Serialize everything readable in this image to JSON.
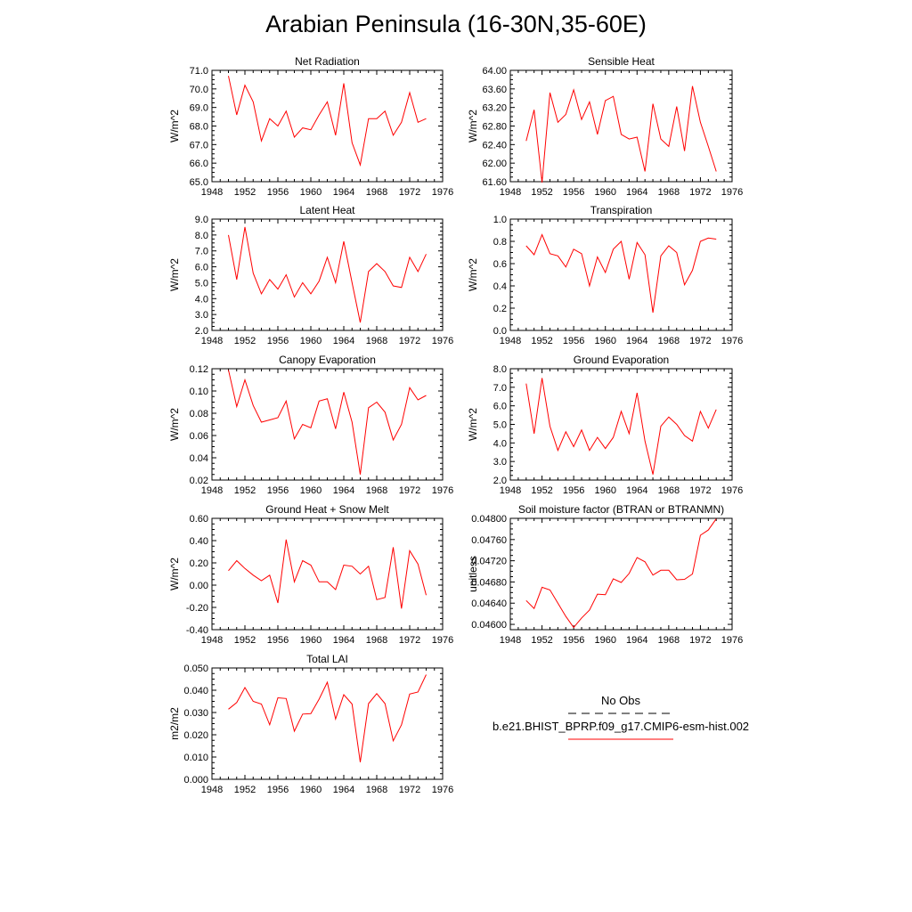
{
  "page_title": "Arabian Peninsula (16-30N,35-60E)",
  "line_color": "#ff0000",
  "obs_color": "#000000",
  "legend": {
    "obs_label": "No Obs",
    "model_label": "b.e21.BHIST_BPRP.f09_g17.CMIP6-esm-hist.002"
  },
  "chart_data": [
    {
      "type": "line",
      "title": "Net Radiation",
      "ylabel": "W/m^2",
      "xlim": [
        1948,
        1976
      ],
      "ylim": [
        65.0,
        71.0
      ],
      "xticks": [
        1948,
        1952,
        1956,
        1960,
        1964,
        1968,
        1972,
        1976
      ],
      "yticks": [
        "65.0",
        "66.0",
        "67.0",
        "68.0",
        "69.0",
        "70.0",
        "71.0"
      ],
      "x": [
        1950,
        1951,
        1952,
        1953,
        1954,
        1955,
        1956,
        1957,
        1958,
        1959,
        1960,
        1961,
        1962,
        1963,
        1964,
        1965,
        1966,
        1967,
        1968,
        1969,
        1970,
        1971,
        1972,
        1973,
        1974
      ],
      "values": [
        70.7,
        68.6,
        70.2,
        69.3,
        67.2,
        68.4,
        68.0,
        68.8,
        67.4,
        67.9,
        67.8,
        68.6,
        69.3,
        67.5,
        70.3,
        67.1,
        65.9,
        68.4,
        68.4,
        68.8,
        67.5,
        68.2,
        69.8,
        68.2,
        68.4
      ]
    },
    {
      "type": "line",
      "title": "Sensible Heat",
      "ylabel": "W/m^2",
      "xlim": [
        1948,
        1976
      ],
      "ylim": [
        61.6,
        64.0
      ],
      "xticks": [
        1948,
        1952,
        1956,
        1960,
        1964,
        1968,
        1972,
        1976
      ],
      "yticks": [
        "61.60",
        "62.00",
        "62.40",
        "62.80",
        "63.20",
        "63.60",
        "64.00"
      ],
      "x": [
        1950,
        1951,
        1952,
        1953,
        1954,
        1955,
        1956,
        1957,
        1958,
        1959,
        1960,
        1961,
        1962,
        1963,
        1964,
        1965,
        1966,
        1967,
        1968,
        1969,
        1970,
        1971,
        1972,
        1973,
        1974
      ],
      "values": [
        62.48,
        63.15,
        61.58,
        63.52,
        62.88,
        63.05,
        63.58,
        62.94,
        63.32,
        62.62,
        63.35,
        63.44,
        62.62,
        62.52,
        62.56,
        61.82,
        63.28,
        62.52,
        62.36,
        63.22,
        62.26,
        63.66,
        62.88,
        62.36,
        61.82
      ]
    },
    {
      "type": "line",
      "title": "Latent Heat",
      "ylabel": "W/m^2",
      "xlim": [
        1948,
        1976
      ],
      "ylim": [
        2.0,
        9.0
      ],
      "xticks": [
        1948,
        1952,
        1956,
        1960,
        1964,
        1968,
        1972,
        1976
      ],
      "yticks": [
        "2.0",
        "3.0",
        "4.0",
        "5.0",
        "6.0",
        "7.0",
        "8.0",
        "9.0"
      ],
      "x": [
        1950,
        1951,
        1952,
        1953,
        1954,
        1955,
        1956,
        1957,
        1958,
        1959,
        1960,
        1961,
        1962,
        1963,
        1964,
        1965,
        1966,
        1967,
        1968,
        1969,
        1970,
        1971,
        1972,
        1973,
        1974
      ],
      "values": [
        8.0,
        5.2,
        8.5,
        5.6,
        4.3,
        5.2,
        4.6,
        5.5,
        4.1,
        5.0,
        4.3,
        5.1,
        6.6,
        5.0,
        7.6,
        5.0,
        2.5,
        5.7,
        6.2,
        5.7,
        4.8,
        4.7,
        6.6,
        5.7,
        6.8
      ]
    },
    {
      "type": "line",
      "title": "Transpiration",
      "ylabel": "W/m^2",
      "xlim": [
        1948,
        1976
      ],
      "ylim": [
        0.0,
        1.0
      ],
      "xticks": [
        1948,
        1952,
        1956,
        1960,
        1964,
        1968,
        1972,
        1976
      ],
      "yticks": [
        "0.0",
        "0.2",
        "0.4",
        "0.6",
        "0.8",
        "1.0"
      ],
      "x": [
        1950,
        1951,
        1952,
        1953,
        1954,
        1955,
        1956,
        1957,
        1958,
        1959,
        1960,
        1961,
        1962,
        1963,
        1964,
        1965,
        1966,
        1967,
        1968,
        1969,
        1970,
        1971,
        1972,
        1973,
        1974
      ],
      "values": [
        0.76,
        0.68,
        0.86,
        0.69,
        0.67,
        0.57,
        0.73,
        0.69,
        0.4,
        0.66,
        0.52,
        0.73,
        0.8,
        0.46,
        0.79,
        0.68,
        0.16,
        0.67,
        0.76,
        0.7,
        0.41,
        0.54,
        0.8,
        0.83,
        0.82
      ]
    },
    {
      "type": "line",
      "title": "Canopy Evaporation",
      "ylabel": "W/m^2",
      "xlim": [
        1948,
        1976
      ],
      "ylim": [
        0.02,
        0.12
      ],
      "xticks": [
        1948,
        1952,
        1956,
        1960,
        1964,
        1968,
        1972,
        1976
      ],
      "yticks": [
        "0.02",
        "0.04",
        "0.06",
        "0.08",
        "0.10",
        "0.12"
      ],
      "x": [
        1950,
        1951,
        1952,
        1953,
        1954,
        1955,
        1956,
        1957,
        1958,
        1959,
        1960,
        1961,
        1962,
        1963,
        1964,
        1965,
        1966,
        1967,
        1968,
        1969,
        1970,
        1971,
        1972,
        1973,
        1974
      ],
      "values": [
        0.119,
        0.086,
        0.11,
        0.087,
        0.072,
        0.074,
        0.076,
        0.091,
        0.057,
        0.07,
        0.067,
        0.091,
        0.093,
        0.066,
        0.099,
        0.072,
        0.025,
        0.085,
        0.09,
        0.081,
        0.056,
        0.07,
        0.103,
        0.092,
        0.096
      ]
    },
    {
      "type": "line",
      "title": "Ground Evaporation",
      "ylabel": "W/m^2",
      "xlim": [
        1948,
        1976
      ],
      "ylim": [
        2.0,
        8.0
      ],
      "xticks": [
        1948,
        1952,
        1956,
        1960,
        1964,
        1968,
        1972,
        1976
      ],
      "yticks": [
        "2.0",
        "3.0",
        "4.0",
        "5.0",
        "6.0",
        "7.0",
        "8.0"
      ],
      "x": [
        1950,
        1951,
        1952,
        1953,
        1954,
        1955,
        1956,
        1957,
        1958,
        1959,
        1960,
        1961,
        1962,
        1963,
        1964,
        1965,
        1966,
        1967,
        1968,
        1969,
        1970,
        1971,
        1972,
        1973,
        1974
      ],
      "values": [
        7.2,
        4.5,
        7.5,
        4.9,
        3.6,
        4.6,
        3.8,
        4.7,
        3.6,
        4.3,
        3.7,
        4.3,
        5.7,
        4.5,
        6.7,
        4.1,
        2.3,
        4.9,
        5.4,
        5.0,
        4.4,
        4.1,
        5.7,
        4.8,
        5.8
      ]
    },
    {
      "type": "line",
      "title": "Ground Heat + Snow Melt",
      "ylabel": "W/m^2",
      "xlim": [
        1948,
        1976
      ],
      "ylim": [
        -0.4,
        0.6
      ],
      "xticks": [
        1948,
        1952,
        1956,
        1960,
        1964,
        1968,
        1972,
        1976
      ],
      "yticks": [
        "-0.40",
        "-0.20",
        "0.00",
        "0.20",
        "0.40",
        "0.60"
      ],
      "x": [
        1950,
        1951,
        1952,
        1953,
        1954,
        1955,
        1956,
        1957,
        1958,
        1959,
        1960,
        1961,
        1962,
        1963,
        1964,
        1965,
        1966,
        1967,
        1968,
        1969,
        1970,
        1971,
        1972,
        1973,
        1974
      ],
      "values": [
        0.13,
        0.22,
        0.15,
        0.09,
        0.04,
        0.09,
        -0.16,
        0.41,
        0.03,
        0.22,
        0.18,
        0.03,
        0.03,
        -0.04,
        0.18,
        0.17,
        0.1,
        0.17,
        -0.13,
        -0.11,
        0.34,
        -0.21,
        0.31,
        0.19,
        -0.09
      ]
    },
    {
      "type": "line",
      "title": "Soil moisture factor (BTRAN or BTRANMN)",
      "ylabel": "unitless",
      "xlim": [
        1948,
        1976
      ],
      "ylim": [
        0.0459,
        0.048
      ],
      "xticks": [
        1948,
        1952,
        1956,
        1960,
        1964,
        1968,
        1972,
        1976
      ],
      "yticks": [
        "0.04600",
        "0.04640",
        "0.04680",
        "0.04720",
        "0.04760",
        "0.04800"
      ],
      "ytick_values": [
        0.046,
        0.0464,
        0.0468,
        0.0472,
        0.0476,
        0.048
      ],
      "x": [
        1950,
        1951,
        1952,
        1953,
        1954,
        1955,
        1956,
        1957,
        1958,
        1959,
        1960,
        1961,
        1962,
        1963,
        1964,
        1965,
        1966,
        1967,
        1968,
        1969,
        1970,
        1971,
        1972,
        1973,
        1974
      ],
      "values": [
        0.04645,
        0.0463,
        0.0467,
        0.04665,
        0.0464,
        0.04615,
        0.04594,
        0.04612,
        0.04627,
        0.04657,
        0.04656,
        0.04686,
        0.04679,
        0.04696,
        0.04726,
        0.04718,
        0.04693,
        0.04702,
        0.04702,
        0.04684,
        0.04685,
        0.04695,
        0.04768,
        0.04778,
        0.04799
      ]
    },
    {
      "type": "line",
      "title": "Total LAI",
      "ylabel": "m2/m2",
      "xlim": [
        1948,
        1976
      ],
      "ylim": [
        0.0,
        0.05
      ],
      "xticks": [
        1948,
        1952,
        1956,
        1960,
        1964,
        1968,
        1972,
        1976
      ],
      "yticks": [
        "0.000",
        "0.010",
        "0.020",
        "0.030",
        "0.040",
        "0.050"
      ],
      "x": [
        1950,
        1951,
        1952,
        1953,
        1954,
        1955,
        1956,
        1957,
        1958,
        1959,
        1960,
        1961,
        1962,
        1963,
        1964,
        1965,
        1966,
        1967,
        1968,
        1969,
        1970,
        1971,
        1972,
        1973,
        1974
      ],
      "values": [
        0.0315,
        0.0345,
        0.0412,
        0.035,
        0.0338,
        0.0245,
        0.0366,
        0.0363,
        0.0216,
        0.0293,
        0.0295,
        0.036,
        0.0436,
        0.0271,
        0.038,
        0.0338,
        0.0077,
        0.034,
        0.0385,
        0.034,
        0.0173,
        0.0245,
        0.0383,
        0.0392,
        0.047
      ]
    }
  ]
}
